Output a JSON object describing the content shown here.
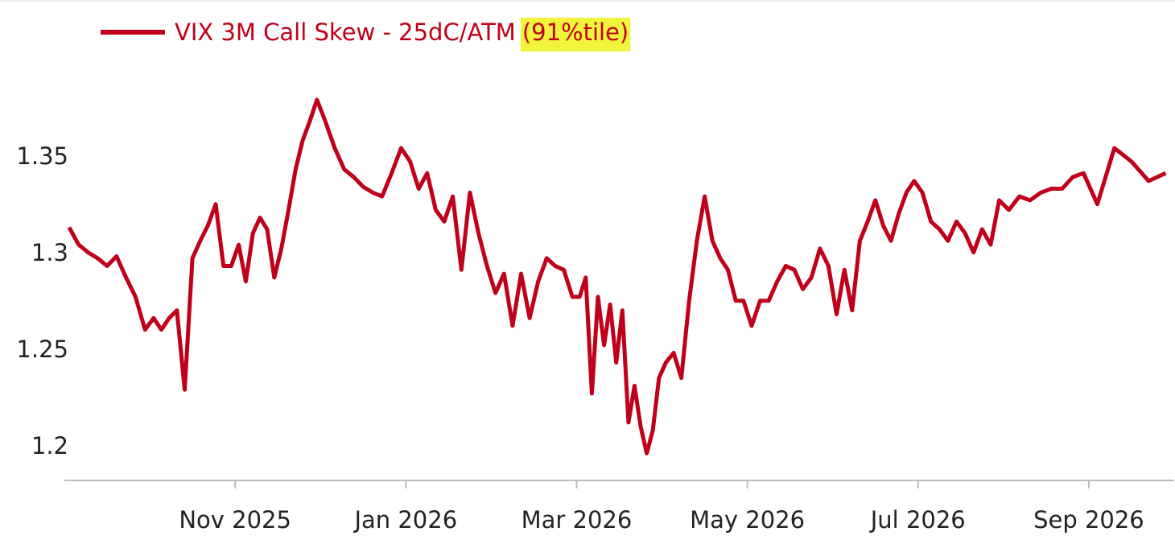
{
  "chart_data": {
    "type": "line",
    "annotation": "(91%tile)",
    "grid": false,
    "x": [
      "2025-09",
      "2025-09",
      "2025-09",
      "2025-09",
      "2025-09",
      "2025-09",
      "2025-09",
      "2025-09",
      "2025-09",
      "2025-10",
      "2025-10",
      "2025-10",
      "2025-10",
      "2025-10",
      "2025-10",
      "2025-10",
      "2025-10",
      "2025-10",
      "2025-10",
      "2025-10",
      "2025-11",
      "2025-11",
      "2025-11",
      "2025-11",
      "2025-11",
      "2025-11",
      "2025-11",
      "2025-11",
      "2025-11",
      "2025-11",
      "2025-11",
      "2025-11",
      "2025-12",
      "2025-12",
      "2025-12",
      "2025-12",
      "2025-12",
      "2025-12",
      "2025-12",
      "2025-12",
      "2025-12",
      "2026-01",
      "2026-01",
      "2026-01",
      "2026-01",
      "2026-01",
      "2026-01",
      "2026-01",
      "2026-01",
      "2026-01",
      "2026-01",
      "2026-02",
      "2026-02",
      "2026-02",
      "2026-02",
      "2026-02",
      "2026-02",
      "2026-02",
      "2026-02",
      "2026-02",
      "2026-02",
      "2026-03",
      "2026-03",
      "2026-03",
      "2026-03",
      "2026-03",
      "2026-03",
      "2026-03",
      "2026-03",
      "2026-03",
      "2026-03",
      "2026-03",
      "2026-03",
      "2026-03",
      "2026-03",
      "2026-04",
      "2026-04",
      "2026-04",
      "2026-04",
      "2026-04",
      "2026-04",
      "2026-04",
      "2026-04",
      "2026-04",
      "2026-04",
      "2026-04",
      "2026-05",
      "2026-05",
      "2026-05",
      "2026-05",
      "2026-05",
      "2026-05",
      "2026-05",
      "2026-05",
      "2026-05",
      "2026-05",
      "2026-06",
      "2026-06",
      "2026-06",
      "2026-06",
      "2026-06",
      "2026-06",
      "2026-06",
      "2026-06",
      "2026-06",
      "2026-06",
      "2026-06",
      "2026-07",
      "2026-07",
      "2026-07",
      "2026-07",
      "2026-07",
      "2026-07",
      "2026-07",
      "2026-07",
      "2026-07",
      "2026-07",
      "2026-08",
      "2026-08",
      "2026-08",
      "2026-08",
      "2026-08",
      "2026-08",
      "2026-08",
      "2026-08",
      "2026-09",
      "2026-09",
      "2026-09",
      "2026-09",
      "2026-09"
    ],
    "series": [
      {
        "name": "VIX 3M Call Skew - 25dC/ATM",
        "color": "#c0001a",
        "values": [
          1.314,
          1.305,
          1.301,
          1.298,
          1.294,
          1.299,
          1.288,
          1.278,
          1.261,
          1.267,
          1.261,
          1.267,
          1.271,
          1.23,
          1.298,
          1.307,
          1.315,
          1.326,
          1.294,
          1.294,
          1.305,
          1.286,
          1.311,
          1.319,
          1.313,
          1.288,
          1.303,
          1.323,
          1.344,
          1.359,
          1.369,
          1.38,
          1.369,
          1.355,
          1.344,
          1.34,
          1.335,
          1.332,
          1.33,
          1.342,
          1.355,
          1.348,
          1.334,
          1.342,
          1.323,
          1.317,
          1.33,
          1.292,
          1.332,
          1.311,
          1.294,
          1.28,
          1.29,
          1.263,
          1.29,
          1.267,
          1.286,
          1.298,
          1.294,
          1.292,
          1.278,
          1.278,
          1.288,
          1.228,
          1.278,
          1.253,
          1.274,
          1.244,
          1.271,
          1.213,
          1.232,
          1.211,
          1.197,
          1.209,
          1.236,
          1.244,
          1.249,
          1.236,
          1.276,
          1.307,
          1.33,
          1.307,
          1.298,
          1.292,
          1.276,
          1.276,
          1.263,
          1.276,
          1.276,
          1.286,
          1.294,
          1.292,
          1.282,
          1.288,
          1.303,
          1.294,
          1.269,
          1.292,
          1.271,
          1.307,
          1.317,
          1.328,
          1.315,
          1.307,
          1.321,
          1.332,
          1.338,
          1.332,
          1.317,
          1.313,
          1.307,
          1.317,
          1.311,
          1.301,
          1.313,
          1.305,
          1.328,
          1.323,
          1.33,
          1.328,
          1.332,
          1.334,
          1.334,
          1.34,
          1.342,
          1.326,
          1.355,
          1.348,
          1.338,
          1.342
        ]
      }
    ],
    "xlim": [
      "2025-09",
      "2026-10"
    ],
    "xticks": [
      {
        "value": "2025-11",
        "label": "Nov 2025"
      },
      {
        "value": "2026-01",
        "label": "Jan 2026"
      },
      {
        "value": "2026-03",
        "label": "Mar 2026"
      },
      {
        "value": "2026-05",
        "label": "May 2026"
      },
      {
        "value": "2026-07",
        "label": "Jul 2026"
      },
      {
        "value": "2026-09",
        "label": "Sep 2026"
      }
    ],
    "ylim": [
      1.183,
      1.39
    ],
    "yticks": [
      1.2,
      1.25,
      1.3,
      1.35
    ]
  }
}
